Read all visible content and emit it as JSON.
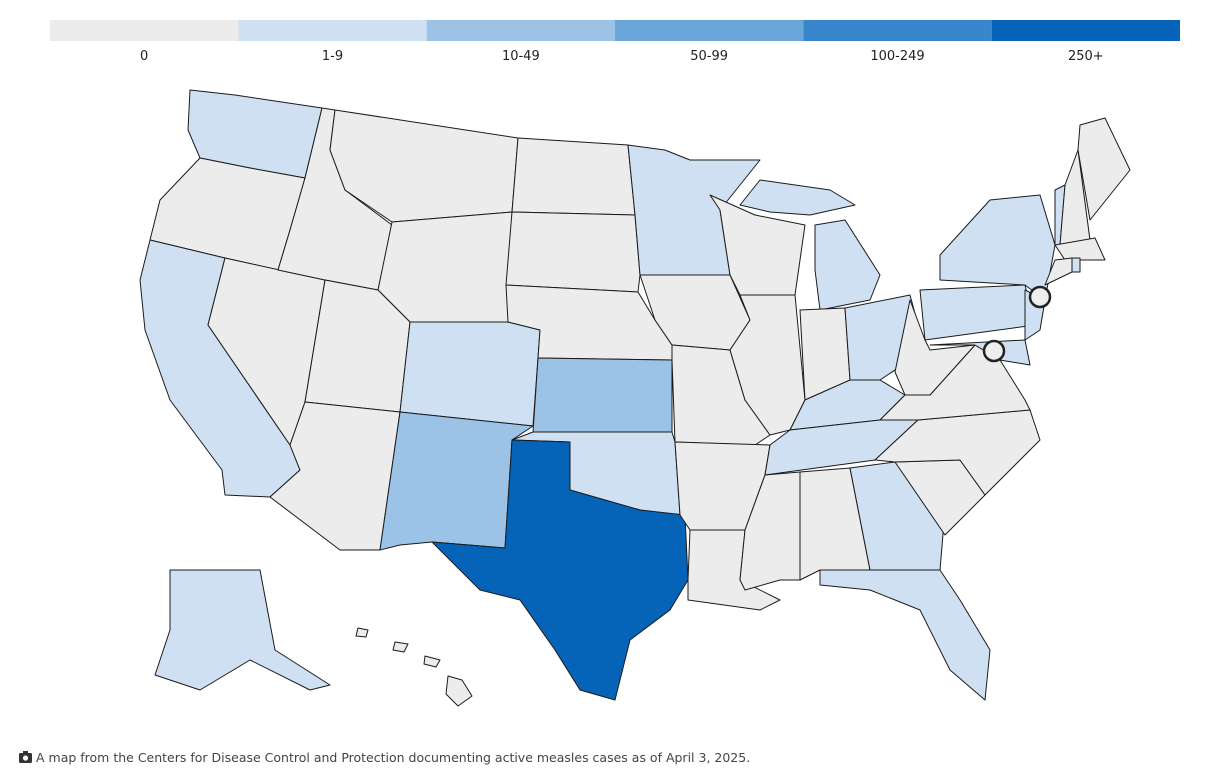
{
  "legend": {
    "bins": [
      {
        "label": "0",
        "color": "#ececec"
      },
      {
        "label": "1-9",
        "color": "#cfe0f3"
      },
      {
        "label": "10-49",
        "color": "#9cc3e5"
      },
      {
        "label": "50-99",
        "color": "#6aa6da"
      },
      {
        "label": "100-249",
        "color": "#3a86cc"
      },
      {
        "label": "250+",
        "color": "#0563b8"
      }
    ]
  },
  "caption": "A map from the Centers for Disease Control and Protection documenting active measles cases as of April 3, 2025."
}
